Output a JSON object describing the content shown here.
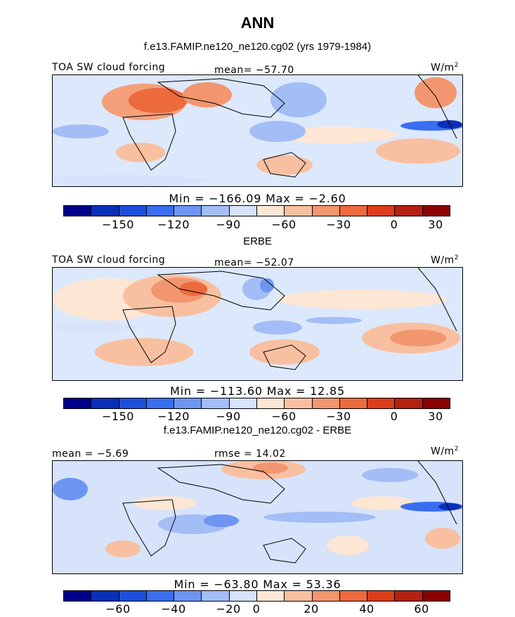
{
  "title": "ANN",
  "panels": [
    {
      "subtitle": "f.e13.FAMIP.ne120_ne120.cg02 (yrs 1979-1984)",
      "left_label": "TOA SW cloud forcing",
      "center_label": "mean= −57.70",
      "units": "W/m",
      "units_sup": "2",
      "stats": "Min = −166.09 Max =  −2.60",
      "colorbar_ticks": [
        "−150",
        "−120",
        "−90",
        "−60",
        "−30",
        "0",
        "30"
      ]
    },
    {
      "subtitle": "ERBE",
      "left_label": "TOA SW cloud forcing",
      "center_label": "mean= −52.07",
      "units": "W/m",
      "units_sup": "2",
      "stats": "Min = −113.60 Max =  12.85",
      "colorbar_ticks": [
        "−150",
        "−120",
        "−90",
        "−60",
        "−30",
        "0",
        "30"
      ]
    },
    {
      "subtitle": "f.e13.FAMIP.ne120_ne120.cg02 - ERBE",
      "left_label": "mean =  −5.69",
      "center_label": "rmse =  14.02",
      "units": "W/m",
      "units_sup": "2",
      "stats": "Min = −63.80 Max =  53.36",
      "colorbar_ticks": [
        "−60",
        "−40",
        "−20",
        "0",
        "20",
        "40",
        "60"
      ]
    }
  ],
  "colorbar_colors": [
    "#00008b",
    "#0a2fb8",
    "#1b4fdc",
    "#3a6ef0",
    "#6d96f3",
    "#a3bdf6",
    "#d6e3fa",
    "#fde6d4",
    "#f8c0a0",
    "#f2966f",
    "#ec6a3e",
    "#dc3d1a",
    "#b52010",
    "#8b0000"
  ]
}
